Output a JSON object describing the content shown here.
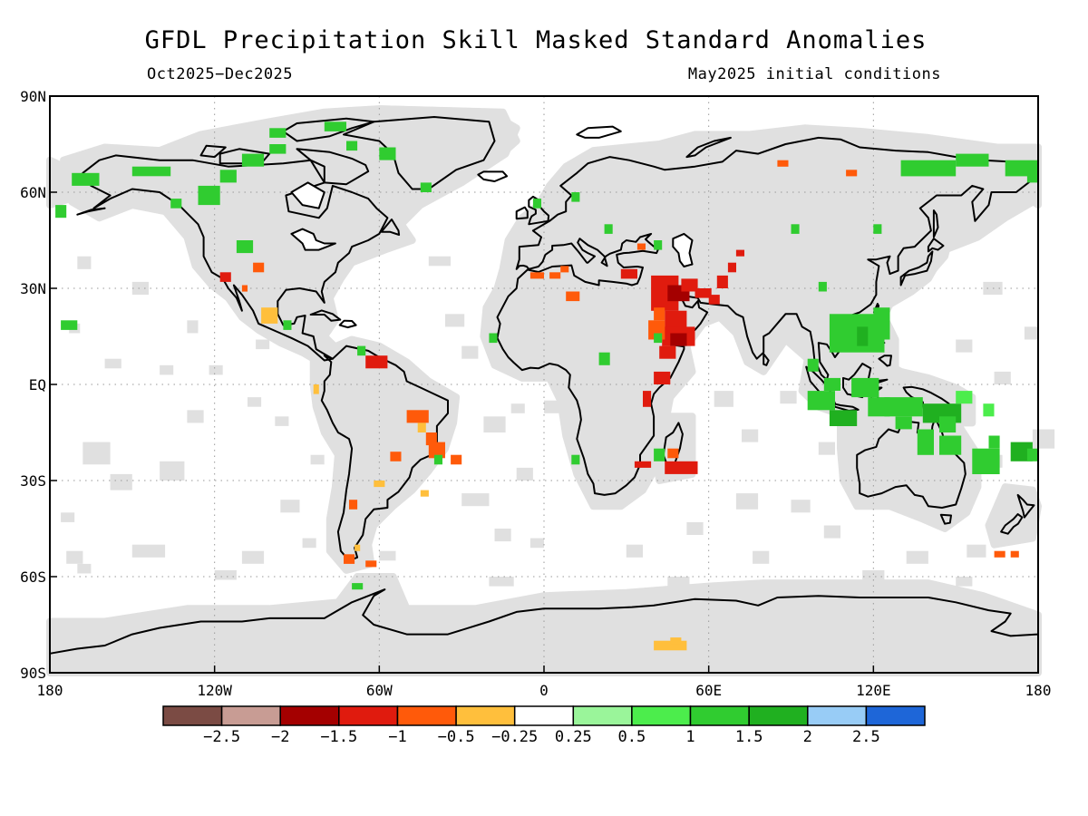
{
  "title": "GFDL Precipitation Skill Masked Standard Anomalies",
  "period": "Oct2025−Dec2025",
  "init": "May2025 initial conditions",
  "lat_labels": [
    "90N",
    "60N",
    "30N",
    "EQ",
    "30S",
    "60S",
    "90S"
  ],
  "lon_labels": [
    "180",
    "120W",
    "60W",
    "0",
    "60E",
    "120E",
    "180"
  ],
  "map_colors": {
    "background": "#ffffff",
    "skill_mask": "#e0e0e0",
    "coastline": "#000000",
    "grid": "#9a9a9a"
  },
  "colorbar": {
    "colors": [
      "#7b4b44",
      "#c89c94",
      "#a40000",
      "#e01b0e",
      "#ff5a0a",
      "#ffbf3c",
      "#ffffff",
      "#9af59a",
      "#4ced4c",
      "#30cc30",
      "#20b020",
      "#98ccf6",
      "#1e66d8"
    ],
    "labels": [
      "−2.5",
      "−2",
      "−1.5",
      "−1",
      "−0.5",
      "−0.25",
      "0.25",
      "0.5",
      "1",
      "1.5",
      "2",
      "2.5"
    ]
  }
}
